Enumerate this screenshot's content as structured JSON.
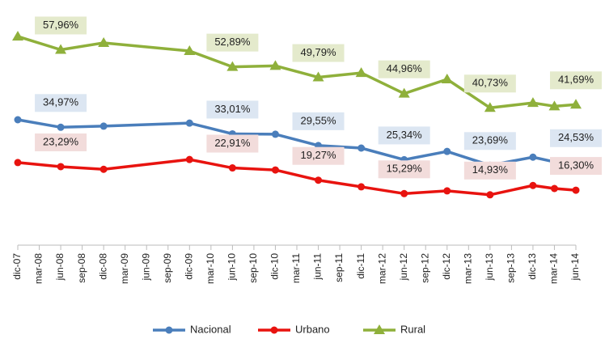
{
  "chart_data": {
    "type": "line",
    "categories": [
      "dic-07",
      "mar-08",
      "jun-08",
      "sep-08",
      "dic-08",
      "mar-09",
      "jun-09",
      "sep-09",
      "dic-09",
      "mar-10",
      "jun-10",
      "sep-10",
      "dic-10",
      "mar-11",
      "jun-11",
      "sep-11",
      "dic-11",
      "mar-12",
      "jun-12",
      "sep-12",
      "dic-12",
      "mar-13",
      "jun-13",
      "sep-13",
      "dic-13",
      "mar-14",
      "jun-14"
    ],
    "ylim": [
      0,
      66
    ],
    "connect_gaps": true,
    "legend": "bottom",
    "series": [
      {
        "name": "Nacional",
        "color": "#4a7ebb",
        "label_bg": "#dce6f2",
        "values": [
          37.2,
          null,
          34.97,
          null,
          35.3,
          null,
          null,
          null,
          36.2,
          null,
          33.01,
          null,
          32.9,
          null,
          29.55,
          null,
          28.8,
          null,
          25.34,
          null,
          27.8,
          null,
          23.69,
          null,
          26.1,
          24.7,
          24.53
        ],
        "value_labels": [
          null,
          null,
          "34,97%",
          null,
          null,
          null,
          null,
          null,
          null,
          null,
          "33,01%",
          null,
          null,
          null,
          "29,55%",
          null,
          null,
          null,
          "25,34%",
          null,
          null,
          null,
          "23,69%",
          null,
          null,
          null,
          "24,53%"
        ]
      },
      {
        "name": "Urbano",
        "color": "#e8130f",
        "label_bg": "#f2dcdb",
        "values": [
          24.5,
          null,
          23.29,
          null,
          22.5,
          null,
          null,
          null,
          25.4,
          null,
          22.91,
          null,
          22.3,
          null,
          19.27,
          null,
          17.3,
          null,
          15.29,
          null,
          16.1,
          null,
          14.93,
          null,
          17.7,
          16.8,
          16.3
        ],
        "value_labels": [
          null,
          null,
          "23,29%",
          null,
          null,
          null,
          null,
          null,
          null,
          null,
          "22,91%",
          null,
          null,
          null,
          "19,27%",
          null,
          null,
          null,
          "15,29%",
          null,
          null,
          null,
          "14,93%",
          null,
          null,
          null,
          "16,30%"
        ]
      },
      {
        "name": "Rural",
        "color": "#8fb03b",
        "label_bg": "#e4eacc",
        "values": [
          61.9,
          null,
          57.96,
          null,
          60.0,
          null,
          null,
          null,
          57.6,
          null,
          52.89,
          null,
          53.2,
          null,
          49.79,
          null,
          51.1,
          null,
          44.96,
          null,
          49.2,
          null,
          40.73,
          null,
          42.2,
          41.2,
          41.69
        ],
        "value_labels": [
          null,
          null,
          "57,96%",
          null,
          null,
          null,
          null,
          null,
          null,
          null,
          "52,89%",
          null,
          null,
          null,
          "49,79%",
          null,
          null,
          null,
          "44,96%",
          null,
          null,
          null,
          "40,73%",
          null,
          null,
          null,
          "41,69%"
        ]
      }
    ]
  }
}
